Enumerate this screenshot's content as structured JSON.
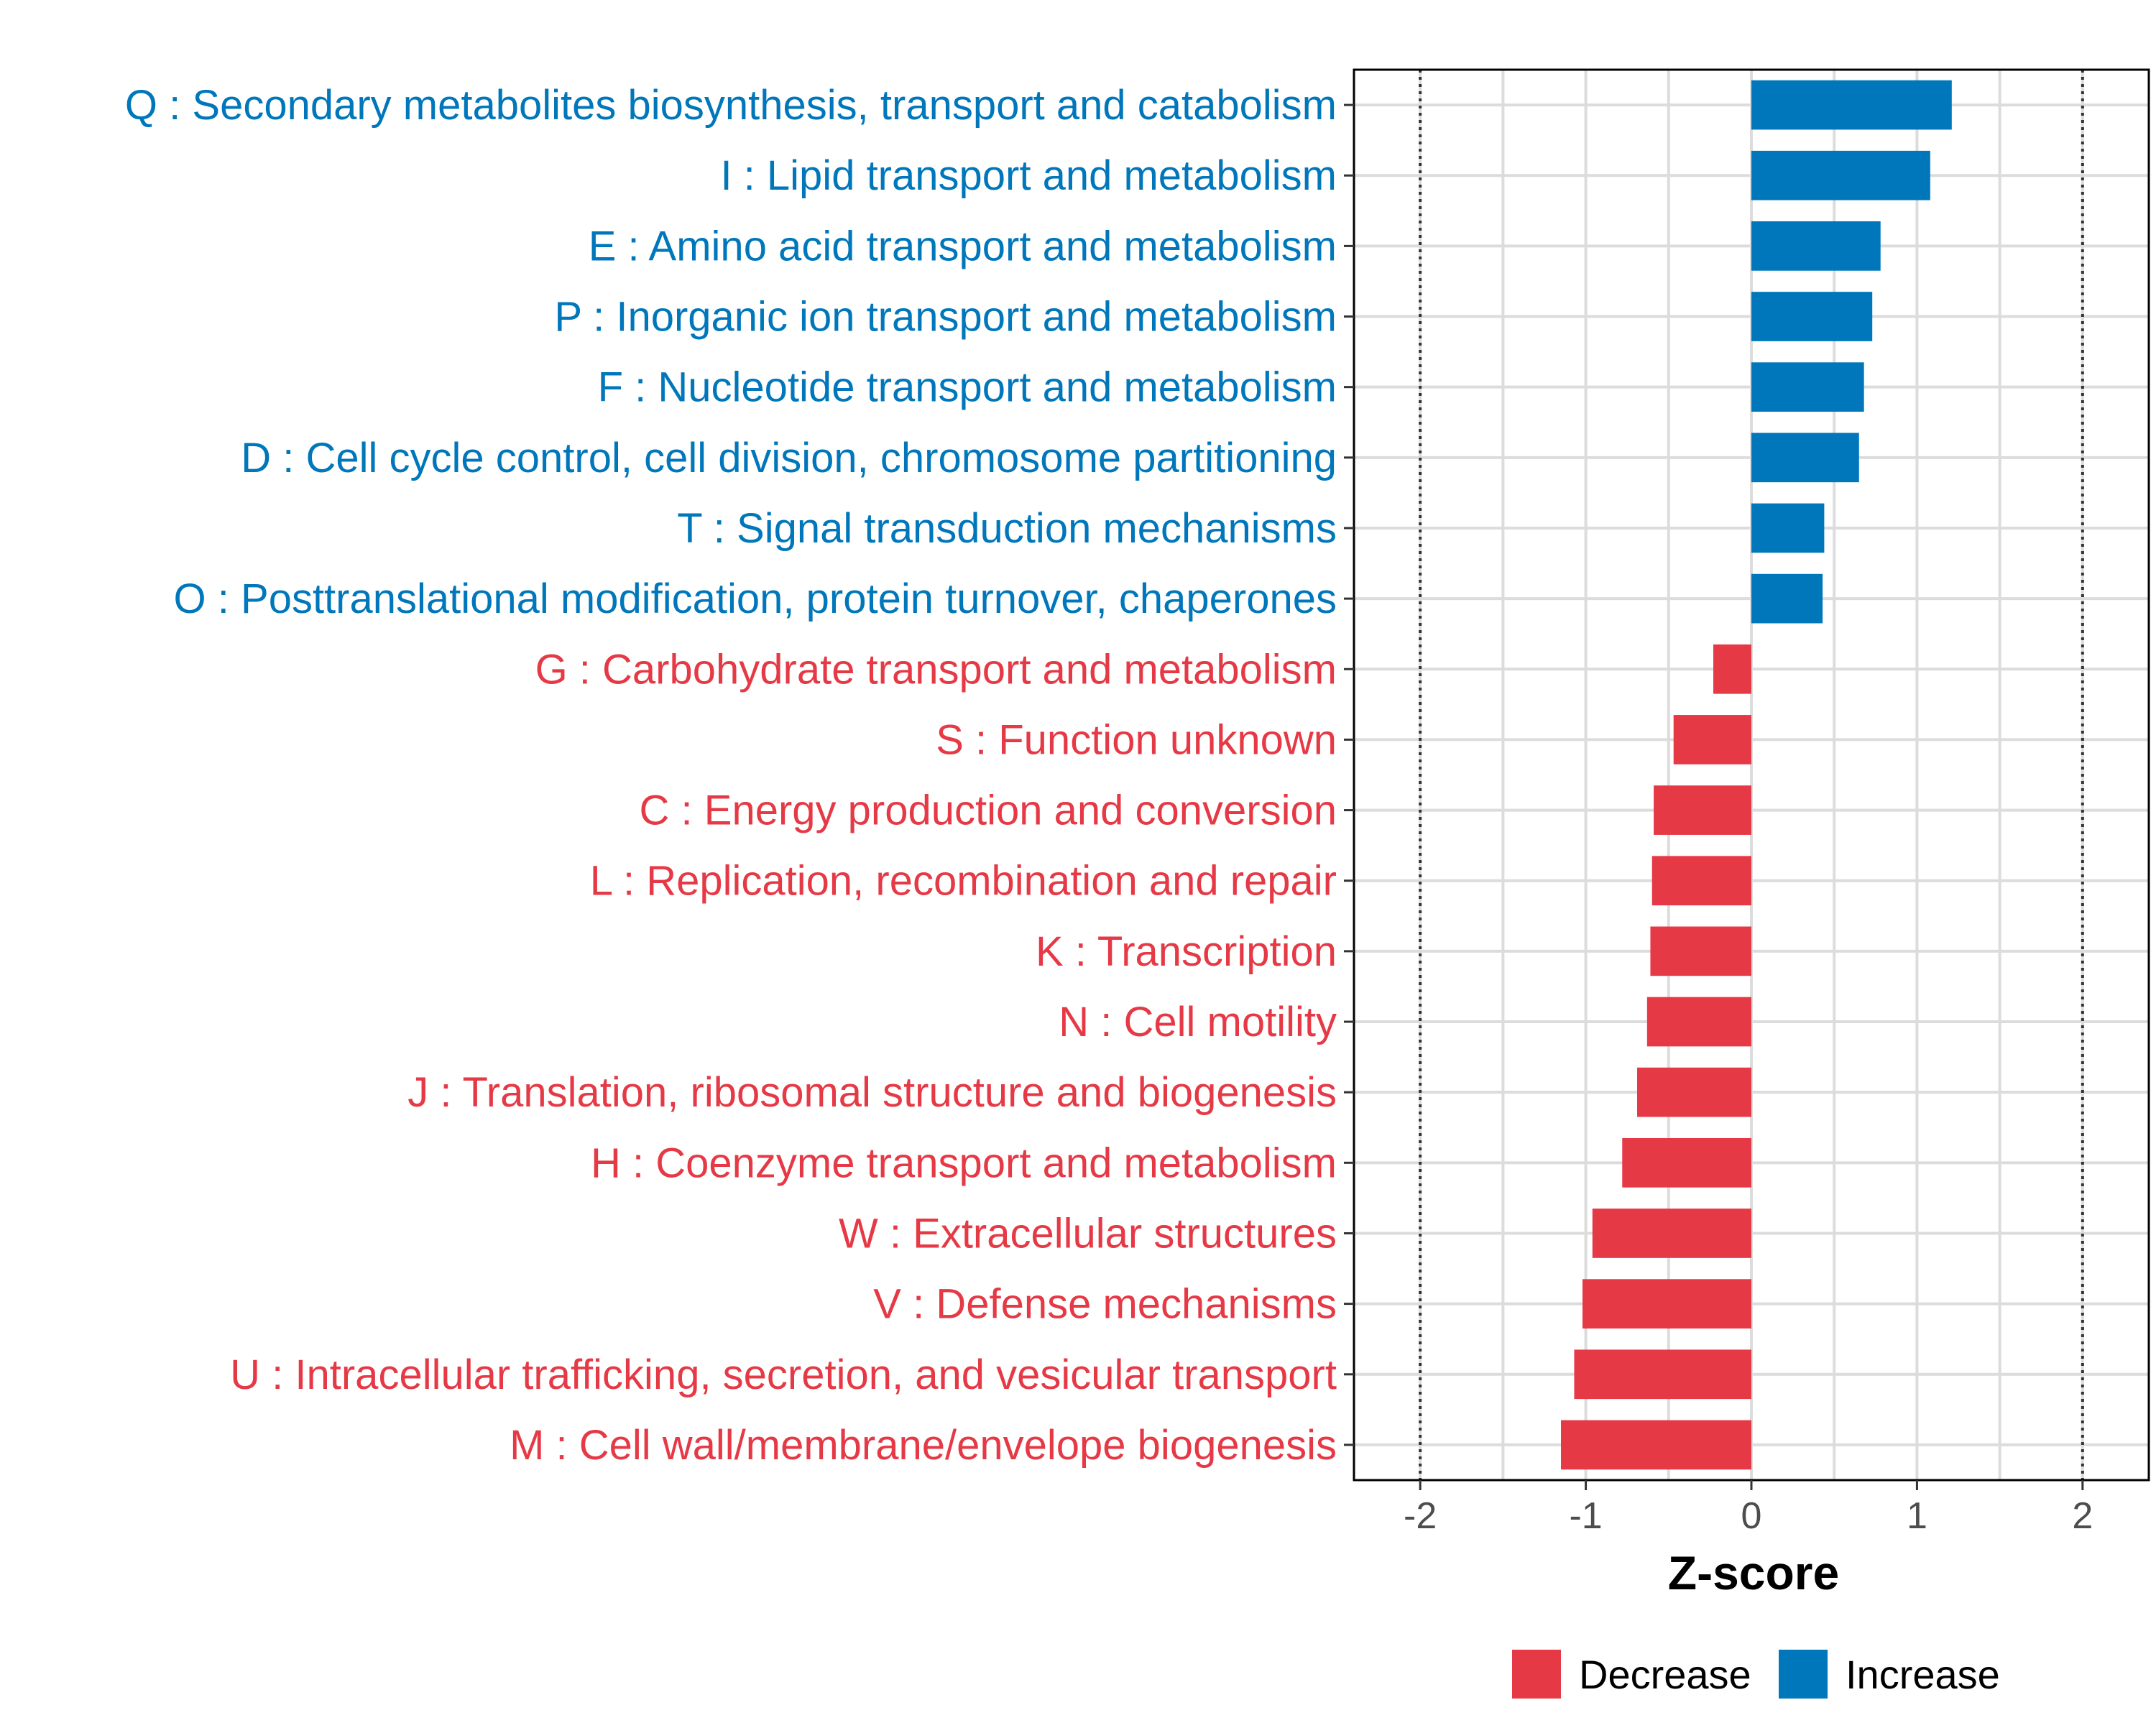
{
  "chart_data": {
    "type": "bar",
    "orientation": "horizontal",
    "xlabel": "Z-score",
    "xlim": [
      -2.4,
      2.4
    ],
    "xticks": [
      -2,
      -1,
      0,
      1,
      2
    ],
    "xtick_labels": [
      "-2",
      "-1",
      "0",
      "1",
      "2"
    ],
    "reference_lines": [
      -2,
      2
    ],
    "grid": true,
    "legend_position": "bottom",
    "colors": {
      "Decrease": "#e63946",
      "Increase": "#0077bb"
    },
    "legend": [
      {
        "name": "Decrease",
        "color": "#e63946"
      },
      {
        "name": "Increase",
        "color": "#0077bb"
      }
    ],
    "bars": [
      {
        "label": "Q : Secondary metabolites biosynthesis, transport and catabolism",
        "value": 1.21,
        "group": "Increase"
      },
      {
        "label": "I : Lipid transport and metabolism",
        "value": 1.08,
        "group": "Increase"
      },
      {
        "label": "E : Amino acid transport and metabolism",
        "value": 0.78,
        "group": "Increase"
      },
      {
        "label": "P : Inorganic ion transport and metabolism",
        "value": 0.73,
        "group": "Increase"
      },
      {
        "label": "F : Nucleotide transport and metabolism",
        "value": 0.68,
        "group": "Increase"
      },
      {
        "label": "D : Cell cycle control, cell division, chromosome partitioning",
        "value": 0.65,
        "group": "Increase"
      },
      {
        "label": "T : Signal transduction mechanisms",
        "value": 0.44,
        "group": "Increase"
      },
      {
        "label": "O : Posttranslational modification, protein turnover, chaperones",
        "value": 0.43,
        "group": "Increase"
      },
      {
        "label": "G : Carbohydrate transport and metabolism",
        "value": -0.23,
        "group": "Decrease"
      },
      {
        "label": "S : Function unknown",
        "value": -0.47,
        "group": "Decrease"
      },
      {
        "label": "C : Energy production and conversion",
        "value": -0.59,
        "group": "Decrease"
      },
      {
        "label": "L : Replication, recombination and repair",
        "value": -0.6,
        "group": "Decrease"
      },
      {
        "label": "K : Transcription",
        "value": -0.61,
        "group": "Decrease"
      },
      {
        "label": "N : Cell motility",
        "value": -0.63,
        "group": "Decrease"
      },
      {
        "label": "J : Translation, ribosomal structure and biogenesis",
        "value": -0.69,
        "group": "Decrease"
      },
      {
        "label": "H : Coenzyme transport and metabolism",
        "value": -0.78,
        "group": "Decrease"
      },
      {
        "label": "W : Extracellular structures",
        "value": -0.96,
        "group": "Decrease"
      },
      {
        "label": "V : Defense mechanisms",
        "value": -1.02,
        "group": "Decrease"
      },
      {
        "label": "U : Intracellular trafficking, secretion, and vesicular transport",
        "value": -1.07,
        "group": "Decrease"
      },
      {
        "label": "M : Cell wall/membrane/envelope biogenesis",
        "value": -1.15,
        "group": "Decrease"
      }
    ]
  }
}
